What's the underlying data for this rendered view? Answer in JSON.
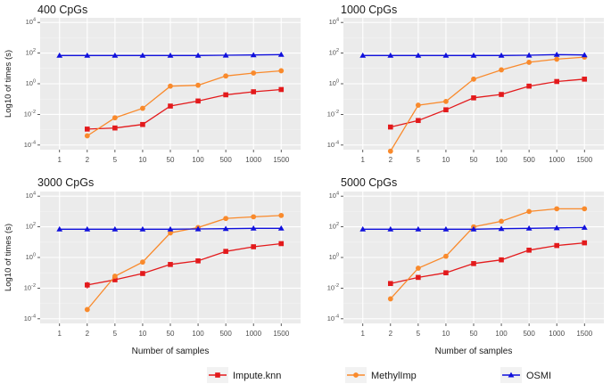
{
  "figure": {
    "xlabel": "Number of samples",
    "ylabel": "Log10 of times (s)",
    "legend": {
      "placement": "bottom",
      "items": [
        {
          "name": "Impute.knn",
          "color": "#e31a1c",
          "marker": "square"
        },
        {
          "name": "MethylImp",
          "color": "#f98a2c",
          "marker": "circle"
        },
        {
          "name": "OSMI",
          "color": "#1010dd",
          "marker": "triangle"
        }
      ]
    }
  },
  "chart_data": [
    {
      "type": "line",
      "title": "400 CpGs",
      "xlabel": "Number of samples",
      "ylabel": "Log10 of times (s)",
      "y_scale": "log10",
      "ylim": [
        5e-05,
        20000
      ],
      "y_ticks": [
        0.0001,
        0.01,
        1,
        100,
        10000
      ],
      "categories": [
        "1",
        "2",
        "5",
        "10",
        "50",
        "100",
        "500",
        "1000",
        "1500"
      ],
      "series": [
        {
          "name": "Impute.knn",
          "values": [
            null,
            0.0011,
            0.0013,
            0.0022,
            0.035,
            0.075,
            0.19,
            0.3,
            0.42
          ]
        },
        {
          "name": "MethylImp",
          "values": [
            null,
            0.0004,
            0.006,
            0.025,
            0.7,
            0.8,
            3.2,
            5.0,
            7.0
          ]
        },
        {
          "name": "OSMI",
          "values": [
            70,
            70,
            70,
            70,
            70,
            70,
            72,
            75,
            80
          ]
        }
      ]
    },
    {
      "type": "line",
      "title": "1000 CpGs",
      "xlabel": "Number of samples",
      "ylabel": "Log10 of times (s)",
      "y_scale": "log10",
      "ylim": [
        5e-05,
        20000
      ],
      "y_ticks": [
        0.0001,
        0.01,
        1,
        100,
        10000
      ],
      "categories": [
        "1",
        "2",
        "5",
        "10",
        "50",
        "100",
        "500",
        "1000",
        "1500"
      ],
      "series": [
        {
          "name": "Impute.knn",
          "values": [
            null,
            0.0015,
            0.004,
            0.02,
            0.12,
            0.2,
            0.7,
            1.4,
            2.0
          ]
        },
        {
          "name": "MethylImp",
          "values": [
            null,
            4e-05,
            0.04,
            0.07,
            2.0,
            8.0,
            25,
            40,
            55
          ]
        },
        {
          "name": "OSMI",
          "values": [
            70,
            70,
            70,
            70,
            70,
            70,
            72,
            80,
            75
          ]
        }
      ]
    },
    {
      "type": "line",
      "title": "3000 CpGs",
      "xlabel": "Number of samples",
      "ylabel": "Log10 of times (s)",
      "y_scale": "log10",
      "ylim": [
        5e-05,
        20000
      ],
      "y_ticks": [
        0.0001,
        0.01,
        1,
        100,
        10000
      ],
      "categories": [
        "1",
        "2",
        "5",
        "10",
        "50",
        "100",
        "500",
        "1000",
        "1500"
      ],
      "series": [
        {
          "name": "Impute.knn",
          "values": [
            null,
            0.016,
            0.035,
            0.09,
            0.35,
            0.6,
            2.5,
            5.0,
            8.0
          ]
        },
        {
          "name": "MethylImp",
          "values": [
            null,
            0.0004,
            0.06,
            0.5,
            40,
            90,
            350,
            450,
            550
          ]
        },
        {
          "name": "OSMI",
          "values": [
            70,
            70,
            70,
            70,
            70,
            72,
            75,
            80,
            80
          ]
        }
      ]
    },
    {
      "type": "line",
      "title": "5000 CpGs",
      "xlabel": "Number of samples",
      "ylabel": "Log10 of times (s)",
      "y_scale": "log10",
      "ylim": [
        5e-05,
        20000
      ],
      "y_ticks": [
        0.0001,
        0.01,
        1,
        100,
        10000
      ],
      "categories": [
        "1",
        "2",
        "5",
        "10",
        "50",
        "100",
        "500",
        "1000",
        "1500"
      ],
      "series": [
        {
          "name": "Impute.knn",
          "values": [
            null,
            0.02,
            0.05,
            0.1,
            0.4,
            0.7,
            3.0,
            6.0,
            9.0
          ]
        },
        {
          "name": "MethylImp",
          "values": [
            null,
            0.002,
            0.2,
            1.2,
            100,
            230,
            1000,
            1500,
            1500
          ]
        },
        {
          "name": "OSMI",
          "values": [
            70,
            70,
            70,
            70,
            70,
            75,
            80,
            85,
            90
          ]
        }
      ]
    }
  ]
}
